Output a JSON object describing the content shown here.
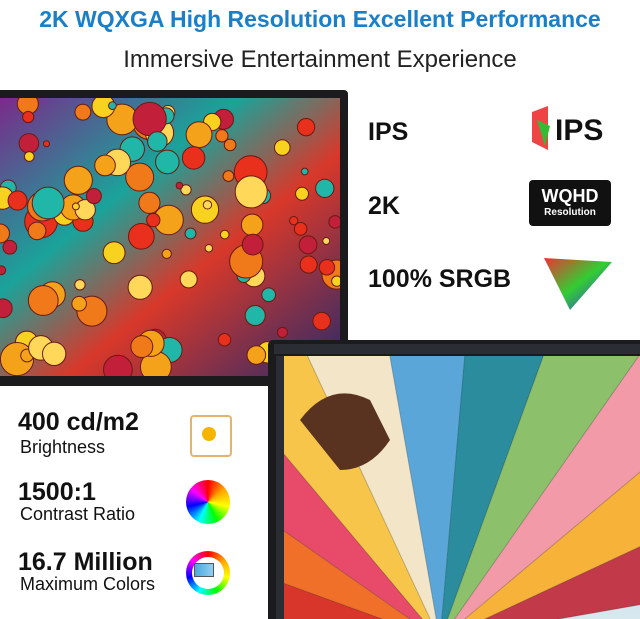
{
  "header": {
    "title": "2K WQXGA High Resolution Excellent Performance",
    "subtitle": "Immersive Entertainment Experience"
  },
  "features": [
    {
      "label": "IPS"
    },
    {
      "label": "2K"
    },
    {
      "label": "100% SRGB"
    }
  ],
  "badges": {
    "ips": "IPS",
    "wqhd": {
      "title": "WQHD",
      "subtitle": "Resolution"
    }
  },
  "specs": [
    {
      "value": "400 cd/m2",
      "label": "Brightness"
    },
    {
      "value": "1500:1",
      "label": "Contrast Ratio"
    },
    {
      "value": "16.7 Million",
      "label": "Maximum Colors"
    }
  ]
}
